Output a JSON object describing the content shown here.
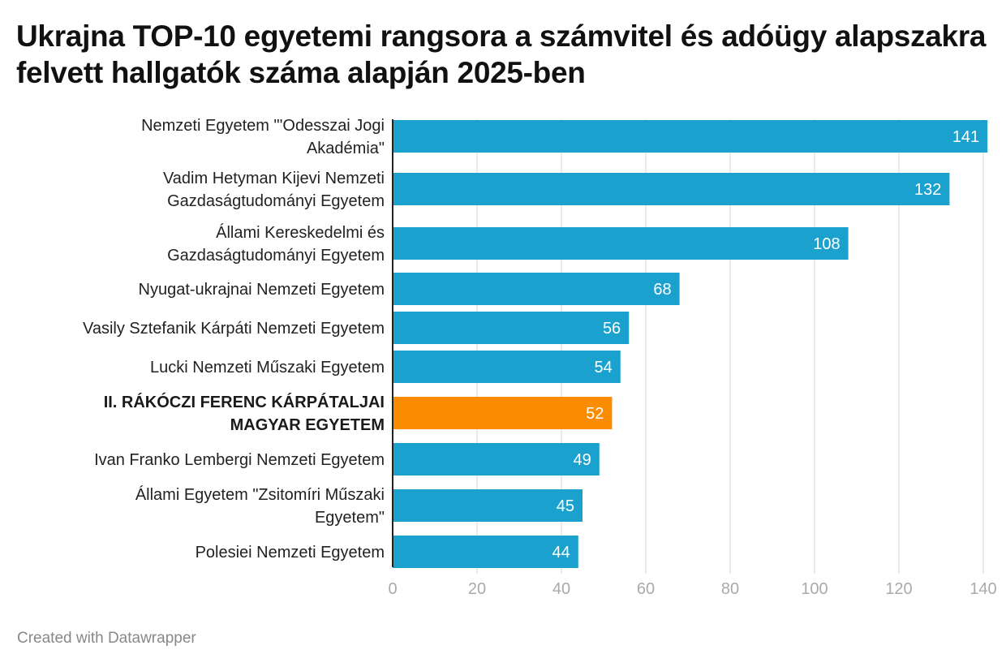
{
  "chart_data": {
    "type": "bar",
    "orientation": "horizontal",
    "title": "Ukrajna TOP-10 egyetemi rangsora a számvitel és adóügy alapszakra felvett hallgatók száma alapján 2025-ben",
    "xlabel": "",
    "ylabel": "",
    "xlim": [
      0,
      140
    ],
    "xticks": [
      0,
      20,
      40,
      60,
      80,
      100,
      120,
      140
    ],
    "grid": true,
    "categories": [
      [
        "Nemzeti Egyetem \"'Odesszai Jogi",
        "Akadémia\""
      ],
      [
        "Vadim Hetyman Kijevi Nemzeti",
        "Gazdaságtudományi Egyetem"
      ],
      [
        "Állami Kereskedelmi és",
        "Gazdaságtudományi Egyetem"
      ],
      [
        "Nyugat-ukrajnai Nemzeti Egyetem"
      ],
      [
        "Vasily Sztefanik Kárpáti Nemzeti Egyetem"
      ],
      [
        "Lucki Nemzeti Műszaki Egyetem"
      ],
      [
        "II. RÁKÓCZI FERENC KÁRPÁTALJAI",
        "MAGYAR EGYETEM"
      ],
      [
        "Ivan Franko Lembergi Nemzeti Egyetem"
      ],
      [
        "Állami Egyetem \"Zsitomíri Műszaki",
        "Egyetem\""
      ],
      [
        "Polesiei Nemzeti Egyetem"
      ]
    ],
    "values": [
      141,
      132,
      108,
      68,
      56,
      54,
      52,
      49,
      45,
      44
    ],
    "highlight_index": 6,
    "colors": {
      "default": "#1aa1cd",
      "highlight": "#f98c00",
      "grid": "#e3e3e3",
      "axis": "#222222"
    }
  },
  "footer": "Created with Datawrapper"
}
